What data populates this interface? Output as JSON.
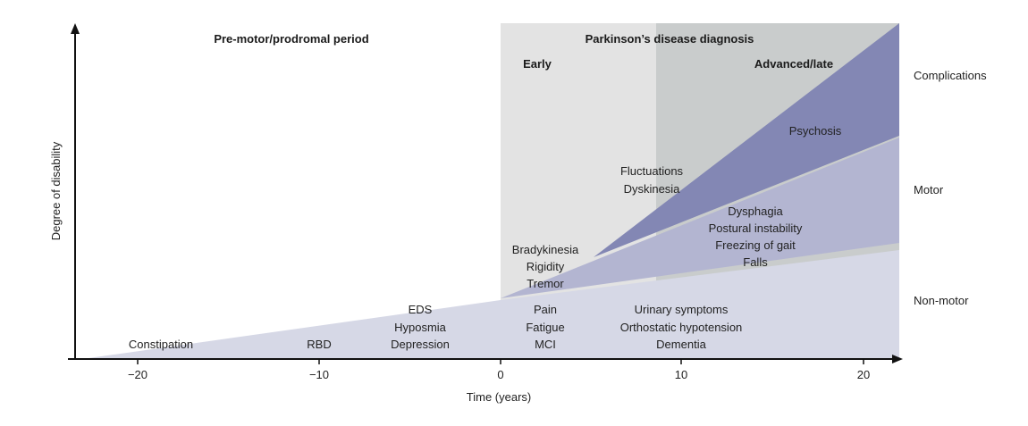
{
  "colors": {
    "early_band": "#e3e3e3",
    "late_band": "#c9cccc",
    "non_motor": "#d6d8e6",
    "motor": "#b3b5d1",
    "complications": "#8387b4",
    "axis": "#111111"
  },
  "headers": {
    "prodromal": "Pre-motor/prodromal period",
    "diagnosis": "Parkinson’s disease diagnosis",
    "early": "Early",
    "late": "Advanced/late"
  },
  "axes": {
    "y_label": "Degree of disability",
    "x_label": "Time (years)",
    "x_ticks": [
      "−20",
      "−10",
      "0",
      "10",
      "20"
    ]
  },
  "right_labels": {
    "complications": "Complications",
    "motor": "Motor",
    "non_motor": "Non-motor"
  },
  "symptoms": {
    "constipation": "Constipation",
    "rbd": "RBD",
    "prodromal": [
      "EDS",
      "Hyposmia",
      "Depression"
    ],
    "early_non_motor": [
      "Pain",
      "Fatigue",
      "MCI"
    ],
    "late_non_motor": [
      "Urinary symptoms",
      "Orthostatic hypotension",
      "Dementia"
    ],
    "early_motor": [
      "Bradykinesia",
      "Rigidity",
      "Tremor"
    ],
    "late_motor": [
      "Dysphagia",
      "Postural instability",
      "Freezing of gait",
      "Falls"
    ],
    "complications_early": [
      "Fluctuations",
      "Dyskinesia"
    ],
    "psychosis": "Psychosis"
  }
}
